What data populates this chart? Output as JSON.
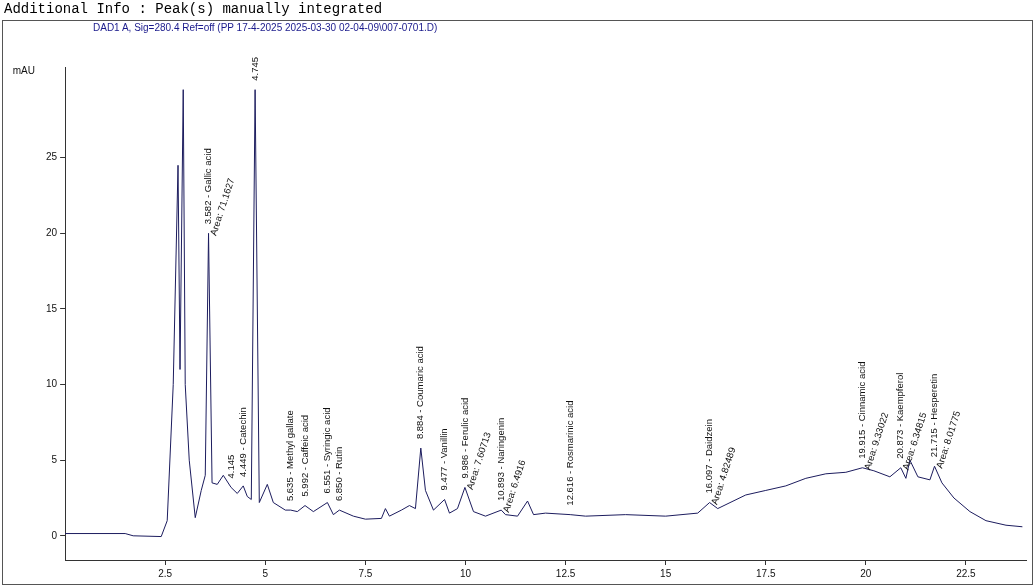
{
  "chart_data": {
    "type": "line",
    "title": "Additional Info : Peak(s) manually integrated",
    "subtitle": "DAD1 A, Sig=280.4 Ref=off (PP 17-4-2025 2025-03-30 02-04-09\\007-0701.D)",
    "ylabel": "mAU",
    "series": [
      {
        "color": "#1c1c5e",
        "x": [
          0,
          1.5,
          1.7,
          2.4,
          2.55,
          2.7,
          2.82,
          2.87,
          2.95,
          3.0,
          3.1,
          3.25,
          3.4,
          3.5,
          3.582,
          3.67,
          3.8,
          3.95,
          4.145,
          4.3,
          4.449,
          4.55,
          4.65,
          4.745,
          4.85,
          5.05,
          5.2,
          5.5,
          5.635,
          5.8,
          5.992,
          6.2,
          6.551,
          6.7,
          6.85,
          7.2,
          7.5,
          7.9,
          8.0,
          8.1,
          8.4,
          8.6,
          8.75,
          8.884,
          9.0,
          9.2,
          9.477,
          9.6,
          9.8,
          9.986,
          10.2,
          10.5,
          10.893,
          11.0,
          11.3,
          11.55,
          11.7,
          12.0,
          12.616,
          13,
          14,
          15,
          15.8,
          16.097,
          16.3,
          17,
          17.5,
          18,
          18.5,
          19,
          19.5,
          19.915,
          20.2,
          20.6,
          20.873,
          21.0,
          21.1,
          21.3,
          21.6,
          21.715,
          21.9,
          22.2,
          22.6,
          23,
          23.5,
          23.9
        ],
        "values": [
          0.15,
          0.15,
          0,
          -0.05,
          1,
          10,
          24.5,
          11,
          29.5,
          10,
          5,
          1.2,
          3,
          4,
          20,
          3.5,
          3.4,
          4,
          3.2,
          2.8,
          3.3,
          2.6,
          2.4,
          29.5,
          2.2,
          3.4,
          2.2,
          1.7,
          1.7,
          1.6,
          2.0,
          1.6,
          2.2,
          1.4,
          1.7,
          1.3,
          1.1,
          1.15,
          1.8,
          1.3,
          1.7,
          2.0,
          1.8,
          5.8,
          3,
          1.7,
          2.4,
          1.5,
          1.8,
          3.2,
          1.6,
          1.3,
          1.7,
          1.4,
          1.3,
          2.3,
          1.4,
          1.5,
          1.4,
          1.3,
          1.4,
          1.3,
          1.5,
          2.2,
          1.8,
          2.7,
          3.0,
          3.3,
          3.8,
          4.1,
          4.2,
          4.5,
          4.3,
          3.9,
          4.5,
          3.8,
          5.0,
          3.9,
          3.7,
          4.6,
          3.5,
          2.5,
          1.6,
          1.0,
          0.7,
          0.6
        ]
      }
    ],
    "xlim": [
      0,
      24
    ],
    "xticks": [
      2.5,
      5,
      7.5,
      10,
      12.5,
      15,
      17.5,
      20,
      22.5
    ],
    "ylim": [
      -1.6,
      31
    ],
    "yticks": [
      0,
      5,
      10,
      15,
      20,
      25
    ],
    "grid": false,
    "legend": false,
    "marker": "none",
    "line_style": "solid",
    "annotations": [
      {
        "text": "3.582 - Gallic acid",
        "x": 3.582,
        "y": 20
      },
      {
        "text": "Area: 71.1627",
        "x": 3.582,
        "y": 20
      },
      {
        "text": "4.745",
        "x": 4.745,
        "y": 29.5
      },
      {
        "text": "4.145",
        "x": 4.145,
        "y": 3.2
      },
      {
        "text": "4.449 - Catechin",
        "x": 4.449,
        "y": 3.3
      },
      {
        "text": "5.635 - Methyl gallate",
        "x": 5.635,
        "y": 1.7
      },
      {
        "text": "5.992 - Caffeic acid",
        "x": 5.992,
        "y": 2.0
      },
      {
        "text": "6.551 - Syringic acid",
        "x": 6.551,
        "y": 2.2
      },
      {
        "text": "6.850 - Rutin",
        "x": 6.85,
        "y": 1.7
      },
      {
        "text": "8.884 - Coumaric acid",
        "x": 8.884,
        "y": 5.8
      },
      {
        "text": "9.477 - Vanillin",
        "x": 9.477,
        "y": 2.4
      },
      {
        "text": "9.986 - Ferulic acid",
        "x": 9.986,
        "y": 3.2
      },
      {
        "text": "Area: 7.60713",
        "x": 9.986,
        "y": 3.2
      },
      {
        "text": "10.893 - Naringenin",
        "x": 10.893,
        "y": 1.7
      },
      {
        "text": "Area: 6.4916",
        "x": 10.893,
        "y": 1.7
      },
      {
        "text": "12.616 - Rosmarinic acid",
        "x": 12.616,
        "y": 1.4
      },
      {
        "text": "16.097 - Daidzein",
        "x": 16.097,
        "y": 2.2
      },
      {
        "text": "Area: 4.82489",
        "x": 16.097,
        "y": 2.2
      },
      {
        "text": "19.915 - Cinnamic acid",
        "x": 19.915,
        "y": 4.5
      },
      {
        "text": "Area: 9.33022",
        "x": 19.915,
        "y": 4.5
      },
      {
        "text": "20.873 - Kaempferol",
        "x": 20.873,
        "y": 4.5
      },
      {
        "text": "Area: 6.34815",
        "x": 20.873,
        "y": 4.5
      },
      {
        "text": "21.715 - Hesperetin",
        "x": 21.715,
        "y": 4.6
      },
      {
        "text": "Area: 8.01775",
        "x": 21.715,
        "y": 4.6
      }
    ]
  }
}
